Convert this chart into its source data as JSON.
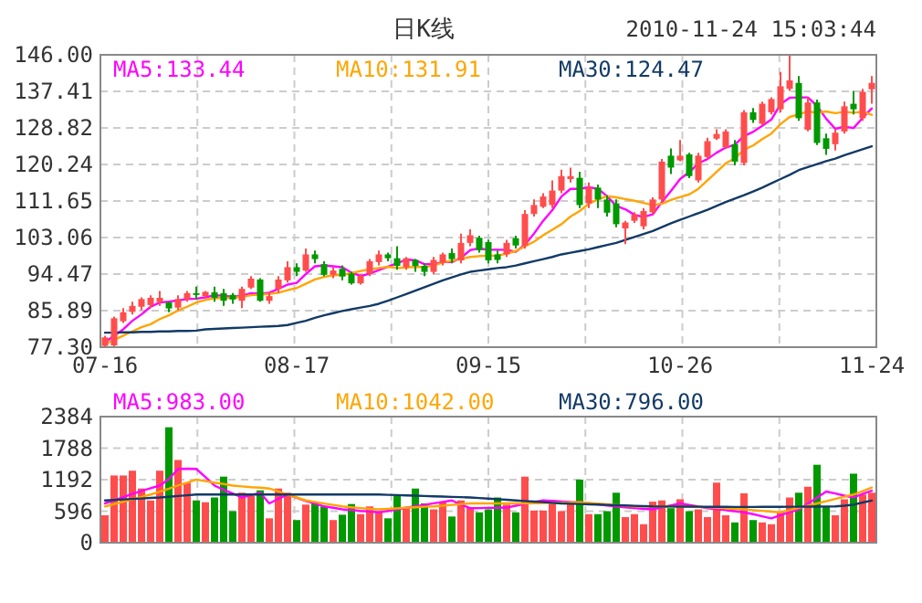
{
  "chart_data": [
    {
      "type": "candlestick",
      "title": "日K线",
      "subtitle": "2010-11-24 15:03:44",
      "categories": [
        "07-16",
        null,
        null,
        null,
        null,
        null,
        null,
        null,
        null,
        null,
        null,
        null,
        null,
        null,
        null,
        null,
        null,
        null,
        null,
        null,
        null,
        "08-17",
        null,
        null,
        null,
        null,
        null,
        null,
        null,
        null,
        null,
        null,
        null,
        null,
        null,
        null,
        null,
        null,
        null,
        null,
        null,
        null,
        "09-15",
        null,
        null,
        null,
        null,
        null,
        null,
        null,
        null,
        null,
        null,
        null,
        null,
        null,
        null,
        null,
        null,
        null,
        null,
        null,
        null,
        "10-26",
        null,
        null,
        null,
        null,
        null,
        null,
        null,
        null,
        null,
        null,
        null,
        null,
        null,
        null,
        null,
        null,
        null,
        null,
        null,
        null,
        "11-24"
      ],
      "ohlc": [
        [
          77.6,
          80,
          77.3,
          79.6
        ],
        [
          77.7,
          84.5,
          77.3,
          84.1
        ],
        [
          83.4,
          86.5,
          83,
          85.5
        ],
        [
          85.6,
          88,
          85,
          87.0
        ],
        [
          86.8,
          89,
          86,
          88.6
        ],
        [
          87.2,
          89.5,
          86.5,
          88.9
        ],
        [
          87.9,
          90.5,
          87,
          88.9
        ],
        [
          87.8,
          88,
          85.5,
          86.4
        ],
        [
          86.6,
          89.5,
          86,
          88.6
        ],
        [
          88.6,
          90.5,
          88,
          90.0
        ],
        [
          90,
          91.5,
          88.5,
          89.6
        ],
        [
          89.3,
          90.5,
          89,
          90.3
        ],
        [
          90.2,
          91.5,
          88,
          88.9
        ],
        [
          90,
          91,
          87,
          88.2
        ],
        [
          89.6,
          90,
          87.5,
          88.5
        ],
        [
          88.2,
          91.5,
          86.5,
          91
        ],
        [
          91.3,
          94,
          91,
          93.4
        ],
        [
          93.2,
          93.5,
          88,
          88.2
        ],
        [
          88.2,
          90,
          87.5,
          89.3
        ],
        [
          91,
          94,
          90,
          93.2
        ],
        [
          93,
          97.5,
          92.5,
          96.1
        ],
        [
          96.1,
          97,
          94,
          95
        ],
        [
          95.3,
          100.5,
          95,
          99.1
        ],
        [
          99.1,
          100,
          97,
          98
        ],
        [
          96.8,
          97.5,
          94,
          94.3
        ],
        [
          94.3,
          96,
          93.5,
          95.3
        ],
        [
          95.7,
          96.5,
          93,
          93.9
        ],
        [
          94.6,
          95,
          92,
          92.3
        ],
        [
          92.3,
          94.5,
          92,
          94
        ],
        [
          94.6,
          98,
          94,
          97.5
        ],
        [
          97.3,
          100,
          96.5,
          99.1
        ],
        [
          99.1,
          99.5,
          97.5,
          98.2
        ],
        [
          98.2,
          101,
          95.5,
          96.4
        ],
        [
          96.1,
          98.5,
          95.5,
          98.2
        ],
        [
          97.8,
          98,
          95,
          96.4
        ],
        [
          96.4,
          97,
          94,
          95
        ],
        [
          95,
          98.5,
          94.5,
          97.8
        ],
        [
          97.1,
          99.5,
          96.5,
          99.1
        ],
        [
          99.4,
          100.5,
          97,
          98
        ],
        [
          97.7,
          104,
          97,
          101.8
        ],
        [
          101.8,
          105,
          101,
          103.6
        ],
        [
          103,
          103.5,
          99.5,
          100.1
        ],
        [
          102,
          102.5,
          97,
          97.7
        ],
        [
          99.1,
          100,
          97,
          97.8
        ],
        [
          99.1,
          102.5,
          98.5,
          101.8
        ],
        [
          102.9,
          103.5,
          100.5,
          101.2
        ],
        [
          101.2,
          109.5,
          100.5,
          108.6
        ],
        [
          108.6,
          112,
          108,
          110.7
        ],
        [
          110.3,
          113.5,
          110,
          112.7
        ],
        [
          110.7,
          116.5,
          110,
          114.1
        ],
        [
          114.1,
          119,
          113.5,
          117.5
        ],
        [
          116.8,
          119.5,
          116,
          117.5
        ],
        [
          117.1,
          118.5,
          110,
          110.7
        ],
        [
          111.1,
          116,
          110,
          114.8
        ],
        [
          114.8,
          115.5,
          110,
          112
        ],
        [
          112,
          113,
          108,
          108.9
        ],
        [
          111.1,
          112,
          105.5,
          106.2
        ],
        [
          105.2,
          107,
          101.5,
          106.6
        ],
        [
          107,
          109,
          106.5,
          108.4
        ],
        [
          105.7,
          110,
          105,
          109.3
        ],
        [
          109,
          112.5,
          108.5,
          112
        ],
        [
          112,
          121.5,
          111.5,
          120.9
        ],
        [
          122.3,
          124,
          118,
          119.5
        ],
        [
          121.2,
          126,
          121,
          122.3
        ],
        [
          122.6,
          123,
          117,
          117.5
        ],
        [
          116.5,
          123,
          116,
          122.3
        ],
        [
          122,
          126.5,
          121.5,
          125.7
        ],
        [
          126.3,
          128.5,
          126,
          127.4
        ],
        [
          124.3,
          128.5,
          124,
          128
        ],
        [
          125,
          126,
          120,
          120.9
        ],
        [
          120.6,
          133,
          120,
          132.5
        ],
        [
          132.5,
          133.5,
          130,
          130.7
        ],
        [
          129.8,
          135,
          129.5,
          134.5
        ],
        [
          132.5,
          136,
          132,
          135.6
        ],
        [
          133.2,
          142,
          132.5,
          138.6
        ],
        [
          138,
          146,
          137.5,
          140
        ],
        [
          139.4,
          141,
          130.5,
          131.1
        ],
        [
          128.4,
          136,
          128,
          134.8
        ],
        [
          134.8,
          135.5,
          124.8,
          125.3
        ],
        [
          126.4,
          127.5,
          122.5,
          123.9
        ],
        [
          125,
          128.5,
          123.5,
          127.7
        ],
        [
          128,
          135,
          127.5,
          133.9
        ],
        [
          134.5,
          137.5,
          132,
          133.2
        ],
        [
          131.1,
          138,
          130.5,
          137.3
        ],
        [
          137.9,
          141,
          134.5,
          139.4
        ]
      ],
      "colors": [
        "#ff4d4d",
        "#ff4d4d",
        "#ff4d4d",
        "#ff4d4d",
        "#ff4d4d",
        "#ff4d4d",
        "#ff4d4d",
        "#009900",
        "#ff4d4d",
        "#ff4d4d",
        "#009900",
        "#ff4d4d",
        "#009900",
        "#009900",
        "#009900",
        "#ff4d4d",
        "#ff4d4d",
        "#009900",
        "#ff4d4d",
        "#ff4d4d",
        "#ff4d4d",
        "#009900",
        "#ff4d4d",
        "#009900",
        "#009900",
        "#ff4d4d",
        "#009900",
        "#009900",
        "#ff4d4d",
        "#ff4d4d",
        "#ff4d4d",
        "#009900",
        "#009900",
        "#ff4d4d",
        "#009900",
        "#009900",
        "#ff4d4d",
        "#ff4d4d",
        "#009900",
        "#ff4d4d",
        "#ff4d4d",
        "#009900",
        "#009900",
        "#009900",
        "#ff4d4d",
        "#009900",
        "#ff4d4d",
        "#ff4d4d",
        "#ff4d4d",
        "#ff4d4d",
        "#ff4d4d",
        "#ff4d4d",
        "#009900",
        "#ff4d4d",
        "#009900",
        "#009900",
        "#009900",
        "#ff4d4d",
        "#ff4d4d",
        "#ff4d4d",
        "#ff4d4d",
        "#ff4d4d",
        "#009900",
        "#ff4d4d",
        "#009900",
        "#ff4d4d",
        "#ff4d4d",
        "#ff4d4d",
        "#ff4d4d",
        "#009900",
        "#ff4d4d",
        "#009900",
        "#ff4d4d",
        "#ff4d4d",
        "#ff4d4d",
        "#ff4d4d",
        "#009900",
        "#ff4d4d",
        "#009900",
        "#009900",
        "#ff4d4d",
        "#ff4d4d",
        "#009900",
        "#ff4d4d",
        "#ff4d4d"
      ],
      "series": [
        {
          "type": "line",
          "name": "MA5:133.44",
          "color": "#ff00ff",
          "values": [
            78.5,
            80,
            81.5,
            83.5,
            85.0,
            86.8,
            87.8,
            88.0,
            88.3,
            88.6,
            88.7,
            89.0,
            89.5,
            89.4,
            89.1,
            89.4,
            90.0,
            89.9,
            90.1,
            91.0,
            92.0,
            92.4,
            94.5,
            96.3,
            96.5,
            96.3,
            96.1,
            94.8,
            94.0,
            94.6,
            95.4,
            96.2,
            97.0,
            97.9,
            97.7,
            96.8,
            96.8,
            97.3,
            97.3,
            98.3,
            100.1,
            100.5,
            100.2,
            100.2,
            100.2,
            99.7,
            101.4,
            104.0,
            107.0,
            109.5,
            112.7,
            114.5,
            114.5,
            114.9,
            114.5,
            112.8,
            110.5,
            109.7,
            108.4,
            107.9,
            108.5,
            111.4,
            114.0,
            116.8,
            118.4,
            120.5,
            121.5,
            123.0,
            124.2,
            124.9,
            126.9,
            127.9,
            129.3,
            130.8,
            134.4,
            135.9,
            136.0,
            136.0,
            134.0,
            131.0,
            128.6,
            129.1,
            128.8,
            131.2,
            133.4
          ]
        },
        {
          "type": "line",
          "name": "MA10:131.91",
          "color": "#ffa500",
          "values": [
            78,
            79,
            80,
            81,
            82,
            82.7,
            83.9,
            84.8,
            85.9,
            86.8,
            87.8,
            88.4,
            88.8,
            88.9,
            88.9,
            89.1,
            89.5,
            89.7,
            89.8,
            90.1,
            90.7,
            91.2,
            92.2,
            93.2,
            93.8,
            94.2,
            94.3,
            94.7,
            95.2,
            95.6,
            95.9,
            96.2,
            95.9,
            96.0,
            96.2,
            96.1,
            96.5,
            97.2,
            97.6,
            98.0,
            98.5,
            98.7,
            98.8,
            98.8,
            99.3,
            99.9,
            101.0,
            102.1,
            103.6,
            104.9,
            106.2,
            108.0,
            109.3,
            111.0,
            112.0,
            112.8,
            112.5,
            112.1,
            111.7,
            111.2,
            110.7,
            111.0,
            111.9,
            112.6,
            113.2,
            114.5,
            116.5,
            118.5,
            120.5,
            121.7,
            123.7,
            124.7,
            126.2,
            127.5,
            129.7,
            131.4,
            132.0,
            132.7,
            132.4,
            132.7,
            132.3,
            132.6,
            132.4,
            132.6,
            131.9
          ]
        },
        {
          "type": "line",
          "name": "MA30:124.47",
          "color": "#123a66",
          "values": [
            80.7,
            80.7,
            80.8,
            80.8,
            80.9,
            80.9,
            81.0,
            81.0,
            81.1,
            81.1,
            81.2,
            81.5,
            81.6,
            81.7,
            81.8,
            81.9,
            82.0,
            82.1,
            82.2,
            82.3,
            82.5,
            83.0,
            83.5,
            84.2,
            84.8,
            85.3,
            85.8,
            86.2,
            86.6,
            87.0,
            87.5,
            88.2,
            89.0,
            89.8,
            90.6,
            91.4,
            92.2,
            93.0,
            93.7,
            94.4,
            95.0,
            95.3,
            95.6,
            95.9,
            96.1,
            96.5,
            97.0,
            97.5,
            98.0,
            98.5,
            99.1,
            99.5,
            99.9,
            100.3,
            100.8,
            101.3,
            101.8,
            102.5,
            103.2,
            103.9,
            104.6,
            105.5,
            106.4,
            107.2,
            108.0,
            108.8,
            109.6,
            110.5,
            111.4,
            112.2,
            113.0,
            113.9,
            114.8,
            115.8,
            116.8,
            117.8,
            118.9,
            119.6,
            120.3,
            121.0,
            121.6,
            122.4,
            123.1,
            123.8,
            124.5
          ]
        }
      ],
      "ylim": [
        77.3,
        146.0
      ],
      "yticks": [
        {
          "value": 77.3,
          "label": "77.30"
        },
        {
          "value": 85.89,
          "label": "85.89"
        },
        {
          "value": 94.47,
          "label": "94.47"
        },
        {
          "value": 103.06,
          "label": "103.06"
        },
        {
          "value": 111.65,
          "label": "111.65"
        },
        {
          "value": 120.24,
          "label": "120.24"
        },
        {
          "value": 128.82,
          "label": "128.82"
        },
        {
          "value": 137.41,
          "label": "137.41"
        },
        {
          "value": 146.0,
          "label": "146.00"
        }
      ],
      "grid": true,
      "legend": "top"
    },
    {
      "type": "bar",
      "categories": [
        null,
        null,
        null,
        null,
        null,
        null,
        null,
        null,
        null,
        null,
        null,
        null,
        null,
        null,
        null,
        null,
        null,
        null,
        null,
        null,
        null,
        null,
        null,
        null,
        null,
        null,
        null,
        null,
        null,
        null,
        null,
        null,
        null,
        null,
        null,
        null,
        null,
        null,
        null,
        null,
        null,
        null,
        null,
        null,
        null,
        null,
        null,
        null,
        null,
        null,
        null,
        null,
        null,
        null,
        null,
        null,
        null,
        null,
        null,
        null,
        null,
        null,
        null,
        null,
        null,
        null,
        null,
        null,
        null,
        null,
        null,
        null,
        null,
        null,
        null,
        null,
        null,
        null,
        null,
        null,
        null,
        null,
        null,
        null,
        null
      ],
      "series": [
        {
          "type": "bar",
          "values": [
            518,
            1271,
            1271,
            1361,
            1024,
            799,
            1361,
            2183,
            1564,
            1136,
            799,
            765,
            855,
            1249,
            596,
            945,
            889,
            990,
            461,
            1024,
            945,
            428,
            720,
            743,
            686,
            428,
            529,
            731,
            540,
            686,
            596,
            461,
            889,
            675,
            1024,
            743,
            630,
            776,
            495,
            799,
            664,
            574,
            630,
            855,
            720,
            574,
            1249,
            608,
            608,
            799,
            596,
            765,
            1193,
            540,
            540,
            596,
            945,
            484,
            540,
            349,
            776,
            799,
            653,
            821,
            596,
            630,
            484,
            1136,
            518,
            383,
            934,
            428,
            383,
            349,
            574,
            855,
            945,
            1058,
            1474,
            686,
            518,
            821,
            1305,
            911,
            945
          ],
          "colors": [
            "#ff4d4d",
            "#ff4d4d",
            "#ff4d4d",
            "#ff4d4d",
            "#ff4d4d",
            "#ff4d4d",
            "#ff4d4d",
            "#009900",
            "#ff4d4d",
            "#ff4d4d",
            "#009900",
            "#ff4d4d",
            "#009900",
            "#009900",
            "#009900",
            "#ff4d4d",
            "#ff4d4d",
            "#009900",
            "#ff4d4d",
            "#ff4d4d",
            "#ff4d4d",
            "#009900",
            "#ff4d4d",
            "#009900",
            "#009900",
            "#ff4d4d",
            "#009900",
            "#009900",
            "#ff4d4d",
            "#ff4d4d",
            "#ff4d4d",
            "#009900",
            "#009900",
            "#ff4d4d",
            "#009900",
            "#009900",
            "#ff4d4d",
            "#ff4d4d",
            "#009900",
            "#ff4d4d",
            "#ff4d4d",
            "#009900",
            "#009900",
            "#009900",
            "#ff4d4d",
            "#009900",
            "#ff4d4d",
            "#ff4d4d",
            "#ff4d4d",
            "#ff4d4d",
            "#ff4d4d",
            "#ff4d4d",
            "#009900",
            "#ff4d4d",
            "#009900",
            "#009900",
            "#009900",
            "#ff4d4d",
            "#ff4d4d",
            "#ff4d4d",
            "#ff4d4d",
            "#ff4d4d",
            "#009900",
            "#ff4d4d",
            "#009900",
            "#ff4d4d",
            "#ff4d4d",
            "#ff4d4d",
            "#ff4d4d",
            "#009900",
            "#ff4d4d",
            "#009900",
            "#ff4d4d",
            "#ff4d4d",
            "#ff4d4d",
            "#ff4d4d",
            "#009900",
            "#ff4d4d",
            "#009900",
            "#009900",
            "#ff4d4d",
            "#ff4d4d",
            "#009900",
            "#ff4d4d",
            "#ff4d4d"
          ]
        },
        {
          "type": "line",
          "name": "MA5:983.00",
          "color": "#ff00ff",
          "values": [
            743,
            800,
            860,
            920,
            980,
            1030,
            1080,
            1200,
            1395,
            1400,
            1395,
            1240,
            1080,
            1000,
            930,
            855,
            900,
            945,
            743,
            830,
            911,
            850,
            790,
            740,
            686,
            660,
            630,
            620,
            600,
            590,
            574,
            600,
            630,
            660,
            686,
            715,
            745,
            770,
            799,
            720,
            653,
            655,
            658,
            660,
            664,
            700,
            735,
            770,
            799,
            790,
            780,
            770,
            765,
            745,
            725,
            705,
            686,
            670,
            655,
            640,
            630,
            670,
            705,
            743,
            715,
            685,
            653,
            635,
            615,
            595,
            574,
            540,
            500,
            461,
            520,
            575,
            630,
            740,
            850,
            968,
            930,
            890,
            855,
            920,
            983
          ]
        },
        {
          "type": "line",
          "name": "MA10:1042.00",
          "color": "#ffa500",
          "values": [
            686,
            730,
            775,
            820,
            865,
            911,
            965,
            1020,
            1080,
            1135,
            1193,
            1165,
            1135,
            1110,
            1080,
            1065,
            1050,
            1040,
            1024,
            970,
            910,
            855,
            799,
            770,
            740,
            715,
            686,
            670,
            655,
            640,
            630,
            640,
            650,
            660,
            670,
            680,
            686,
            700,
            715,
            730,
            743,
            743,
            743,
            743,
            743,
            743,
            743,
            747,
            750,
            755,
            758,
            762,
            765,
            752,
            738,
            725,
            712,
            700,
            686,
            686,
            686,
            686,
            686,
            686,
            686,
            677,
            668,
            659,
            650,
            640,
            630,
            616,
            602,
            588,
            574,
            616,
            658,
            700,
            743,
            785,
            828,
            870,
            911,
            975,
            1042
          ]
        },
        {
          "type": "line",
          "name": "MA30:796.00",
          "color": "#123a66",
          "values": [
            799,
            808,
            818,
            827,
            836,
            846,
            855,
            869,
            883,
            897,
            911,
            911,
            911,
            911,
            911,
            911,
            911,
            911,
            911,
            911,
            911,
            911,
            911,
            911,
            911,
            911,
            911,
            911,
            911,
            911,
            911,
            905,
            900,
            894,
            889,
            883,
            878,
            872,
            866,
            861,
            855,
            844,
            833,
            822,
            811,
            799,
            788,
            777,
            766,
            754,
            743,
            737,
            732,
            726,
            720,
            715,
            709,
            703,
            697,
            692,
            686,
            685,
            684,
            683,
            682,
            681,
            679,
            678,
            677,
            676,
            675,
            676,
            677,
            678,
            679,
            680,
            681,
            682,
            683,
            684,
            686,
            700,
            720,
            760,
            796
          ]
        }
      ],
      "ylim": [
        0,
        2384
      ],
      "yticks": [
        0,
        596,
        1192,
        1788,
        2384
      ],
      "grid": true,
      "legend": "top"
    }
  ]
}
